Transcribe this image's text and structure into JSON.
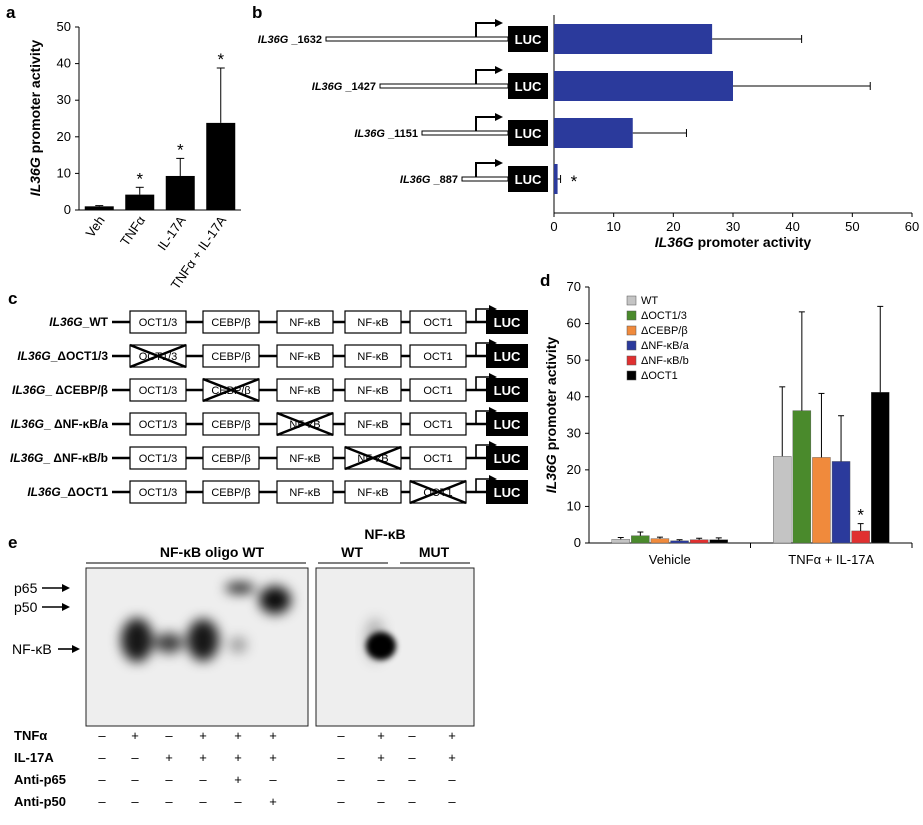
{
  "chart_data": [
    {
      "panel": "a",
      "type": "bar",
      "categories": [
        "Veh",
        "TNFα",
        "IL-17A",
        "TNFα + IL-17A"
      ],
      "values": [
        1,
        4.2,
        9.3,
        23.8
      ],
      "errors": [
        0.2,
        2,
        4.8,
        15
      ],
      "significance": [
        "",
        "*",
        "*",
        "*"
      ],
      "ylabel_italic": "IL36G",
      "ylabel_rest": " promoter activity",
      "ylim": [
        0,
        50
      ],
      "yticks": [
        "0",
        "10",
        "20",
        "30",
        "40",
        "50"
      ],
      "bar_color": "#000000"
    },
    {
      "panel": "b",
      "type": "bar",
      "orientation": "horizontal",
      "constructs": [
        {
          "name": "IL36G",
          "suffix": " _1632",
          "value": 26.5,
          "error": 15,
          "sig": ""
        },
        {
          "name": "IL36G",
          "suffix": " _1427",
          "value": 30,
          "error": 23,
          "sig": ""
        },
        {
          "name": "IL36G",
          "suffix": " _1151",
          "value": 13.2,
          "error": 9,
          "sig": ""
        },
        {
          "name": "IL36G",
          "suffix": " _887",
          "value": 0.6,
          "error": 0.5,
          "sig": "*"
        }
      ],
      "luc_label": "LUC",
      "xlabel_italic": "IL36G",
      "xlabel_rest": " promoter activity",
      "xlim": [
        0,
        60
      ],
      "xticks": [
        "0",
        "10",
        "20",
        "30",
        "40",
        "50",
        "60"
      ],
      "bar_color": "#2b3a9c"
    },
    {
      "panel": "d",
      "type": "bar",
      "categories": [
        "Vehicle",
        "TNFα + IL-17A"
      ],
      "series": [
        {
          "name": "WT",
          "color": "#c4c4c4",
          "values": [
            1,
            23.7
          ],
          "errors": [
            0.5,
            19
          ]
        },
        {
          "name": "ΔOCT1/3",
          "color": "#4a8a2c",
          "values": [
            2,
            36.2
          ],
          "errors": [
            1,
            27
          ]
        },
        {
          "name": "ΔCEBP/β",
          "color": "#f08a3c",
          "values": [
            1.2,
            23.4
          ],
          "errors": [
            0.4,
            17.5
          ]
        },
        {
          "name": "ΔNF-κB/a",
          "color": "#2b3a9c",
          "values": [
            0.6,
            22.3
          ],
          "errors": [
            0.3,
            12.5
          ]
        },
        {
          "name": "ΔNF-κB/b",
          "color": "#e03030",
          "values": [
            0.9,
            3.3
          ],
          "errors": [
            0.4,
            2
          ]
        },
        {
          "name": "ΔOCT1",
          "color": "#000000",
          "values": [
            0.9,
            41.2
          ],
          "errors": [
            0.5,
            23.5
          ]
        }
      ],
      "significance": {
        "series": "ΔNF-κB/b",
        "category": "TNFα + IL-17A",
        "mark": "*"
      },
      "ylabel_italic": "IL36G",
      "ylabel_rest": " promoter activity",
      "ylim": [
        0,
        70
      ],
      "yticks": [
        "0",
        "10",
        "20",
        "30",
        "40",
        "50",
        "60",
        "70"
      ],
      "legend_placement": "top-left"
    }
  ],
  "panel_labels": {
    "a": "a",
    "b": "b",
    "c": "c",
    "d": "d",
    "e": "e"
  },
  "panel_c": {
    "elements": [
      "OCT1/3",
      "CEBP/β",
      "NF-κB",
      "NF-κB",
      "OCT1"
    ],
    "luc_label": "LUC",
    "constructs": [
      {
        "name": "IL36G",
        "suffix": "_WT",
        "deleted": -1
      },
      {
        "name": "IL36G",
        "suffix": "_ΔOCT1/3",
        "deleted": 0
      },
      {
        "name": "IL36G",
        "suffix": "_ ΔCEBP/β",
        "deleted": 1
      },
      {
        "name": "IL36G",
        "suffix": "_ ΔNF-κB/a",
        "deleted": 2
      },
      {
        "name": "IL36G",
        "suffix": "_ ΔNF-κB/b",
        "deleted": 3
      },
      {
        "name": "IL36G",
        "suffix": "_ΔOCT1",
        "deleted": 4
      }
    ]
  },
  "panel_e": {
    "header_left": "NF-κB oligo WT",
    "header_right": "NF-κB",
    "sub_wt": "WT",
    "sub_mut": "MUT",
    "markers": [
      "p65",
      "p50",
      "NF-κB"
    ],
    "rows": [
      {
        "label": "TNFα",
        "left": [
          "–",
          "+",
          "–",
          "+",
          "+",
          "+"
        ],
        "right": [
          "–",
          "+",
          "–",
          "+"
        ]
      },
      {
        "label": "IL-17A",
        "left": [
          "–",
          "–",
          "+",
          "+",
          "+",
          "+"
        ],
        "right": [
          "–",
          "+",
          "–",
          "+"
        ]
      },
      {
        "label": "Anti-p65",
        "left": [
          "–",
          "–",
          "–",
          "–",
          "+",
          "–"
        ],
        "right": [
          "–",
          "–",
          "–",
          "–"
        ]
      },
      {
        "label": "Anti-p50",
        "left": [
          "–",
          "–",
          "–",
          "–",
          "–",
          "+"
        ],
        "right": [
          "–",
          "–",
          "–",
          "–"
        ]
      }
    ]
  }
}
